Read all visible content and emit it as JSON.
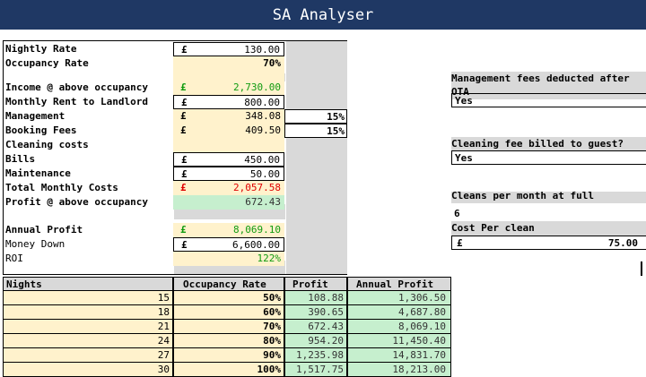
{
  "title": "SA Analyser",
  "currency": "£",
  "rows": {
    "nightly_rate": {
      "label": "Nightly Rate",
      "value": "130.00"
    },
    "occupancy_rate": {
      "label": "Occupancy Rate",
      "value": "70%"
    },
    "income": {
      "label": "Income @ above occupancy",
      "value": "2,730.00"
    },
    "rent": {
      "label": "Monthly Rent to Landlord",
      "value": "800.00"
    },
    "management": {
      "label": "Management",
      "value": "348.08",
      "pct": "15%"
    },
    "booking": {
      "label": "Booking Fees",
      "value": "409.50",
      "pct": "15%"
    },
    "cleaning": {
      "label": "Cleaning costs",
      "value": ""
    },
    "bills": {
      "label": "Bills",
      "value": "450.00"
    },
    "maintenance": {
      "label": "Maintenance",
      "value": "50.00"
    },
    "total_costs": {
      "label": "Total Monthly Costs",
      "value": "2,057.58"
    },
    "profit": {
      "label": "Profit @ above occupancy",
      "value": "672.43"
    },
    "annual_profit": {
      "label": "Annual Profit",
      "value": "8,069.10"
    },
    "money_down": {
      "label": "Money Down",
      "value": "6,600.00"
    },
    "roi": {
      "label": "ROI",
      "value": "122%"
    }
  },
  "side": {
    "mgmt_q_line1": "Management fees deducted after",
    "mgmt_q_line2": "OTA",
    "mgmt_a": "Yes",
    "clean_q": "Cleaning fee billed to guest?",
    "clean_a": "Yes",
    "cleans_label": "Cleans per month at full",
    "cleans_value": "6",
    "cost_label": "Cost Per clean",
    "cost_value": "75.00"
  },
  "table": {
    "headers": {
      "nights": "Nights",
      "occ": "Occupancy Rate",
      "profit": "Profit",
      "annual": "Annual Profit"
    },
    "rows": [
      {
        "nights": "15",
        "occ": "50%",
        "profit": "108.88",
        "annual": "1,306.50"
      },
      {
        "nights": "18",
        "occ": "60%",
        "profit": "390.65",
        "annual": "4,687.80"
      },
      {
        "nights": "21",
        "occ": "70%",
        "profit": "672.43",
        "annual": "8,069.10"
      },
      {
        "nights": "24",
        "occ": "80%",
        "profit": "954.20",
        "annual": "11,450.40"
      },
      {
        "nights": "27",
        "occ": "90%",
        "profit": "1,235.98",
        "annual": "14,831.70"
      },
      {
        "nights": "30",
        "occ": "100%",
        "profit": "1,517.75",
        "annual": "18,213.00"
      }
    ]
  }
}
